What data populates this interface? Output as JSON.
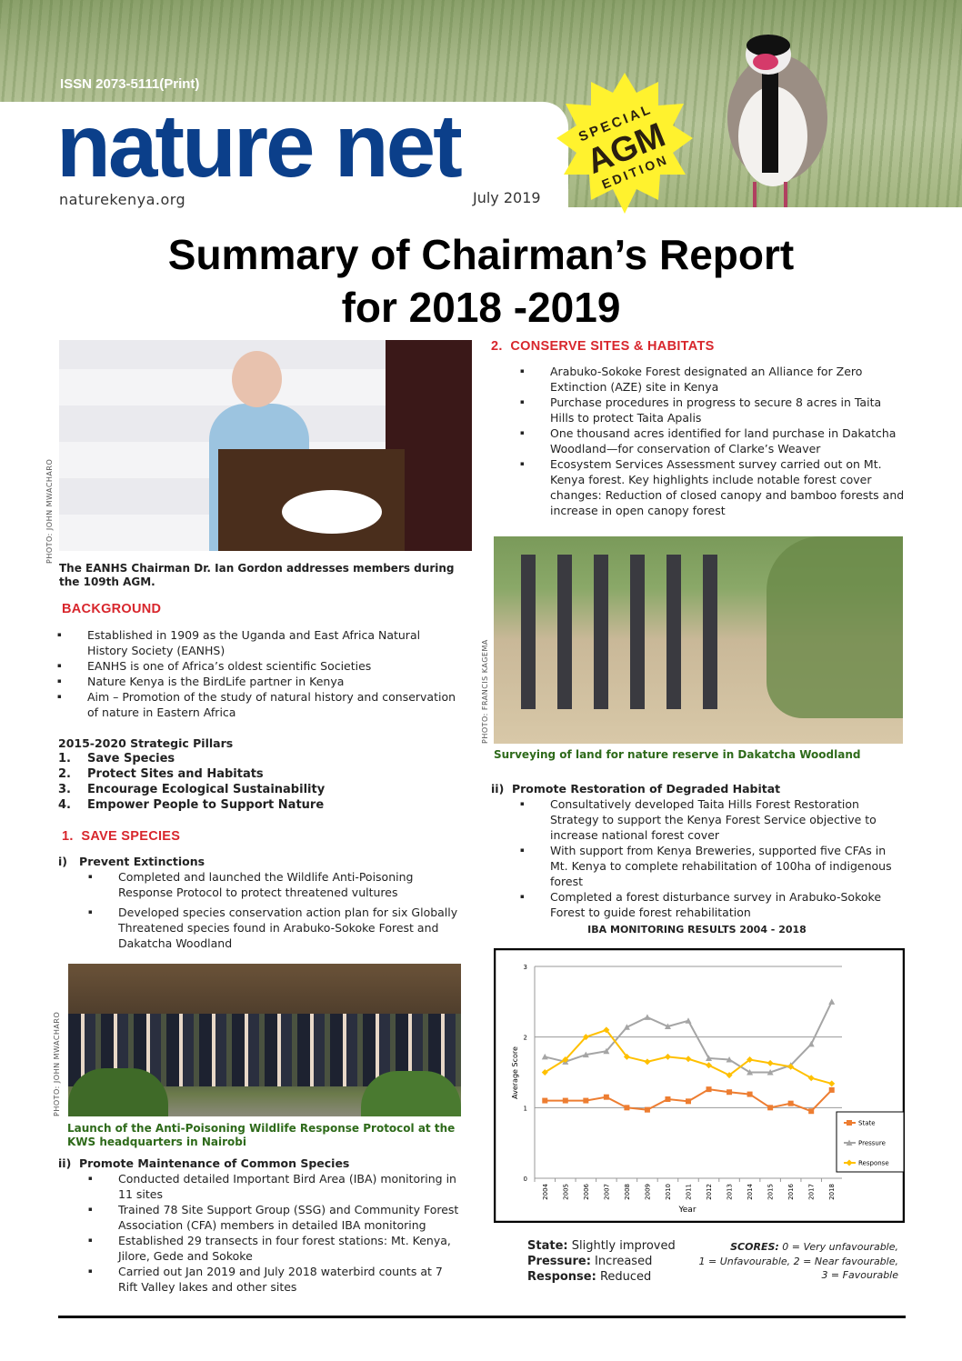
{
  "masthead": {
    "issn": "ISSN  2073-5111(Print)",
    "logo": "nature net",
    "website": "naturekenya.org",
    "date": "July 2019",
    "badge": {
      "line1": "SPECIAL",
      "line2": "AGM",
      "line3": "EDITION"
    }
  },
  "title": {
    "line1": "Summary of Chairman’s Report",
    "line2": "for 2018 -2019"
  },
  "photos": {
    "chairman": {
      "credit": "PHOTO: JOHN MWACHARO",
      "caption": "The EANHS Chairman Dr. Ian Gordon addresses members during the 109th AGM."
    },
    "survey": {
      "credit": "PHOTO: FRANCIS KAGEMA",
      "caption": "Surveying of land for nature reserve in Dakatcha Woodland"
    },
    "launch": {
      "credit": "PHOTO: JOHN MWACHARO",
      "caption": "Launch of the Anti-Poisoning Wildlife Response Protocol at the KWS headquarters in Nairobi"
    }
  },
  "background": {
    "heading": "BACKGROUND",
    "items": [
      "Established in 1909 as the Uganda and East Africa Natural History Society (EANHS)",
      "EANHS is one of Africa’s oldest scientific Societies",
      "Nature Kenya is the BirdLife partner in Kenya",
      "Aim – Promotion of the study of natural history and conservation of nature in Eastern Africa"
    ]
  },
  "pillars": {
    "heading": "2015-2020 Strategic Pillars",
    "items": [
      {
        "num": "1.",
        "label": "Save Species"
      },
      {
        "num": "2.",
        "label": "Protect Sites and Habitats"
      },
      {
        "num": "3.",
        "label": "Encourage Ecological Sustainability"
      },
      {
        "num": "4.",
        "label": "Empower People to Support Nature"
      }
    ]
  },
  "save_species": {
    "heading": "1.  SAVE SPECIES",
    "prevent": {
      "heading": "i)   Prevent Extinctions",
      "items": [
        "Completed and launched the Wildlife Anti-Poisoning Response Protocol to protect threatened vultures",
        "Developed species conservation action plan for six Globally Threatened species found in Arabuko-Sokoke Forest and Dakatcha Woodland"
      ]
    },
    "maintain": {
      "heading": "ii)  Promote Maintenance of Common Species",
      "items": [
        "Conducted detailed Important Bird Area (IBA) monitoring in 11 sites",
        "Trained 78 Site Support Group (SSG) and Community Forest Association (CFA) members in detailed IBA monitoring",
        "Established 29 transects in four forest stations: Mt. Kenya, Jilore, Gede and Sokoke",
        "Carried out Jan 2019 and July 2018 waterbird counts at 7 Rift Valley lakes and other sites"
      ]
    }
  },
  "conserve": {
    "heading": "2.  CONSERVE SITES & HABITATS",
    "items": [
      "Arabuko-Sokoke Forest designated an Alliance for Zero Extinction (AZE) site in Kenya",
      "Purchase procedures in progress to secure 8 acres in Taita Hills to protect Taita Apalis",
      "One thousand acres identified for land purchase in Dakatcha Woodland—for conservation of Clarke’s Weaver",
      "Ecosystem Services Assessment survey carried out on Mt. Kenya forest. Key highlights include notable forest cover changes: Reduction of closed canopy and bamboo forests and increase in open canopy forest"
    ],
    "restoration": {
      "heading": "ii)  Promote Restoration of Degraded Habitat",
      "items": [
        "Consultatively developed Taita Hills Forest Restoration Strategy to support the Kenya Forest Service objective to increase national forest cover",
        "With support from Kenya Breweries, supported five CFAs in Mt. Kenya to complete rehabilitation of 100ha of indigenous forest",
        "Completed a forest disturbance survey in Arabuko-Sokoke Forest to guide forest rehabilitation"
      ]
    }
  },
  "chart_data": {
    "type": "line",
    "title": "IBA MONITORING RESULTS 2004 - 2018",
    "xlabel": "Year",
    "ylabel": "Average Score",
    "ylim": [
      0,
      3
    ],
    "yticks": [
      0,
      1,
      2,
      3
    ],
    "grid": true,
    "legend": "right",
    "categories": [
      "2004",
      "2005",
      "2006",
      "2007",
      "2008",
      "2009",
      "2010",
      "2011",
      "2012",
      "2013",
      "2014",
      "2015",
      "2016",
      "2017",
      "2018"
    ],
    "series": [
      {
        "name": "State",
        "color": "#ed7d31",
        "marker": "square",
        "values": [
          1.1,
          1.1,
          1.1,
          1.15,
          1.0,
          0.97,
          1.12,
          1.09,
          1.26,
          1.22,
          1.19,
          1.0,
          1.06,
          0.95,
          1.25
        ]
      },
      {
        "name": "Pressure",
        "color": "#a5a5a5",
        "marker": "triangle",
        "values": [
          1.72,
          1.65,
          1.75,
          1.8,
          2.14,
          2.28,
          2.15,
          2.23,
          1.7,
          1.68,
          1.5,
          1.5,
          1.6,
          1.9,
          2.5
        ]
      },
      {
        "name": "Response",
        "color": "#ffc000",
        "marker": "diamond",
        "values": [
          1.5,
          1.68,
          2.0,
          2.1,
          1.72,
          1.65,
          1.72,
          1.69,
          1.6,
          1.46,
          1.68,
          1.63,
          1.58,
          1.42,
          1.34
        ]
      }
    ]
  },
  "chart_notes": {
    "state_label": "State:",
    "state_value": " Slightly improved",
    "pressure_label": "Pressure:",
    "pressure_value": " Increased",
    "response_label": "Response:",
    "response_value": " Reduced",
    "scores_label": "SCORES:",
    "scores_line1": " 0 = Very unfavourable,",
    "scores_line2": "1 = Unfavourable, 2 = Near favourable,",
    "scores_line3": "3 = Favourable"
  }
}
